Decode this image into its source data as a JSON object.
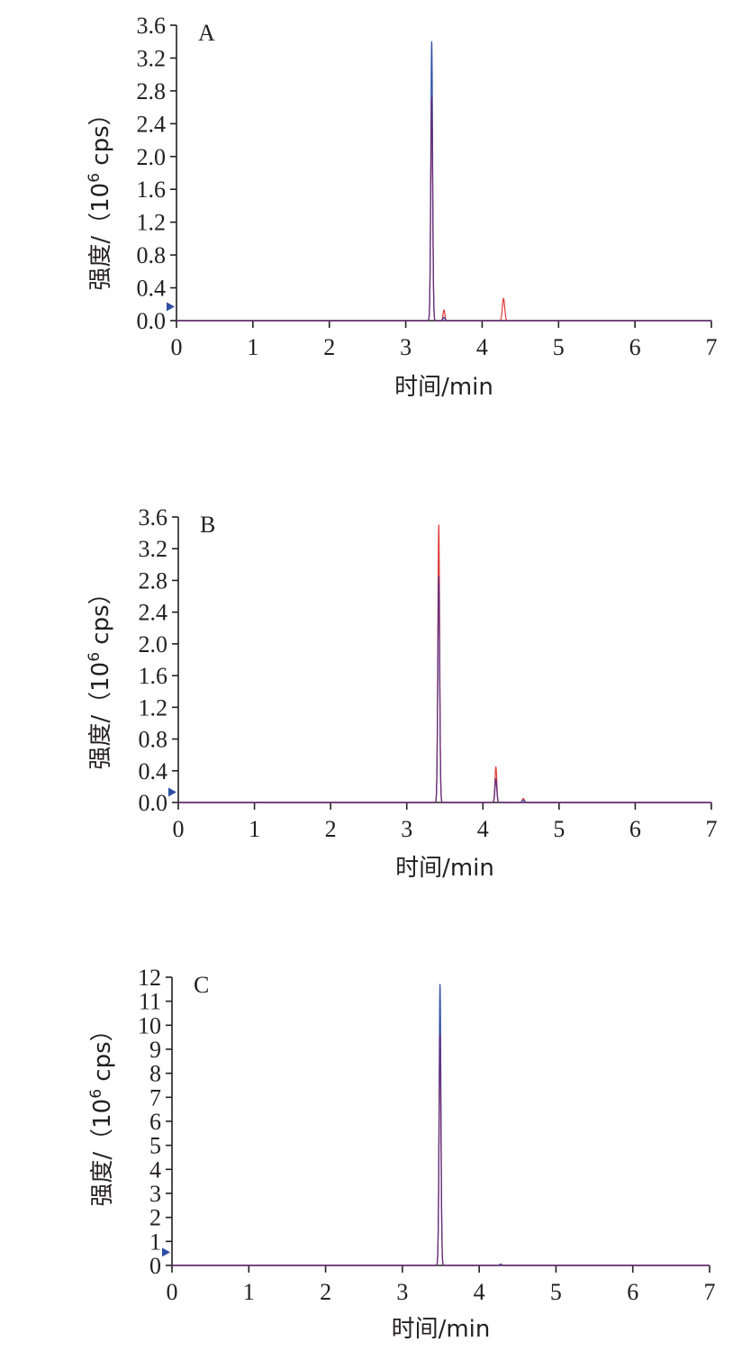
{
  "chart_data": [
    {
      "type": "line",
      "panel_label": "A",
      "xlabel": "时间/min",
      "ylabel": {
        "main": "强度/（10",
        "sup": "6",
        "tail": " cps）"
      },
      "xlim": [
        0,
        7
      ],
      "ylim": [
        0,
        3.6
      ],
      "xticks": [
        "0",
        "1",
        "2",
        "3",
        "4",
        "5",
        "6",
        "7"
      ],
      "yticks": [
        "0.0",
        "0.4",
        "0.8",
        "1.2",
        "1.6",
        "2.0",
        "2.4",
        "2.8",
        "3.2",
        "3.6"
      ],
      "marker_y": 0.17,
      "series": [
        {
          "color": "#e03a3a",
          "peaks": [
            {
              "x": 3.34,
              "h": 2.72,
              "w": 0.012
            },
            {
              "x": 3.5,
              "h": 0.13,
              "w": 0.012
            },
            {
              "x": 4.28,
              "h": 0.27,
              "w": 0.015
            }
          ]
        },
        {
          "color": "#2e4fa3",
          "peaks": [
            {
              "x": 3.34,
              "h": 3.4,
              "w": 0.012
            },
            {
              "x": 3.5,
              "h": 0.04,
              "w": 0.012
            }
          ]
        },
        {
          "color": "#6b2f7a",
          "peaks": [
            {
              "x": 3.34,
              "h": 2.72,
              "w": 0.012
            }
          ]
        }
      ]
    },
    {
      "type": "line",
      "panel_label": "B",
      "xlabel": "时间/min",
      "ylabel": {
        "main": "强度/（10",
        "sup": "6",
        "tail": " cps）"
      },
      "xlim": [
        0,
        7
      ],
      "ylim": [
        0,
        3.6
      ],
      "xticks": [
        "0",
        "1",
        "2",
        "3",
        "4",
        "5",
        "6",
        "7"
      ],
      "yticks": [
        "0.0",
        "0.4",
        "0.8",
        "1.2",
        "1.6",
        "2.0",
        "2.4",
        "2.8",
        "3.2",
        "3.6"
      ],
      "marker_y": 0.13,
      "series": [
        {
          "color": "#e03a3a",
          "peaks": [
            {
              "x": 3.42,
              "h": 3.5,
              "w": 0.012
            },
            {
              "x": 4.17,
              "h": 0.45,
              "w": 0.012
            },
            {
              "x": 4.53,
              "h": 0.05,
              "w": 0.015
            }
          ]
        },
        {
          "color": "#2e4fa3",
          "peaks": [
            {
              "x": 3.42,
              "h": 2.85,
              "w": 0.012
            },
            {
              "x": 4.17,
              "h": 0.3,
              "w": 0.012
            },
            {
              "x": 4.53,
              "h": 0.03,
              "w": 0.015
            }
          ]
        },
        {
          "color": "#6b2f7a",
          "peaks": [
            {
              "x": 3.42,
              "h": 2.85,
              "w": 0.012
            },
            {
              "x": 4.17,
              "h": 0.3,
              "w": 0.012
            }
          ]
        }
      ]
    },
    {
      "type": "line",
      "panel_label": "C",
      "xlabel": "时间/min",
      "ylabel": {
        "main": "强度/（10",
        "sup": "6",
        "tail": " cps）"
      },
      "xlim": [
        0,
        7
      ],
      "ylim": [
        0,
        12
      ],
      "xticks": [
        "0",
        "1",
        "2",
        "3",
        "4",
        "5",
        "6",
        "7"
      ],
      "yticks": [
        "0",
        "1",
        "2",
        "3",
        "4",
        "5",
        "6",
        "7",
        "8",
        "9",
        "10",
        "11",
        "12"
      ],
      "marker_y": 0.55,
      "series": [
        {
          "color": "#e03a3a",
          "peaks": [
            {
              "x": 3.49,
              "h": 9.6,
              "w": 0.012
            },
            {
              "x": 4.28,
              "h": 0.05,
              "w": 0.012
            }
          ]
        },
        {
          "color": "#2e4fa3",
          "peaks": [
            {
              "x": 3.49,
              "h": 11.7,
              "w": 0.012
            },
            {
              "x": 4.28,
              "h": 0.06,
              "w": 0.012
            }
          ]
        },
        {
          "color": "#6b2f7a",
          "peaks": [
            {
              "x": 3.49,
              "h": 9.6,
              "w": 0.012
            }
          ]
        }
      ]
    }
  ]
}
